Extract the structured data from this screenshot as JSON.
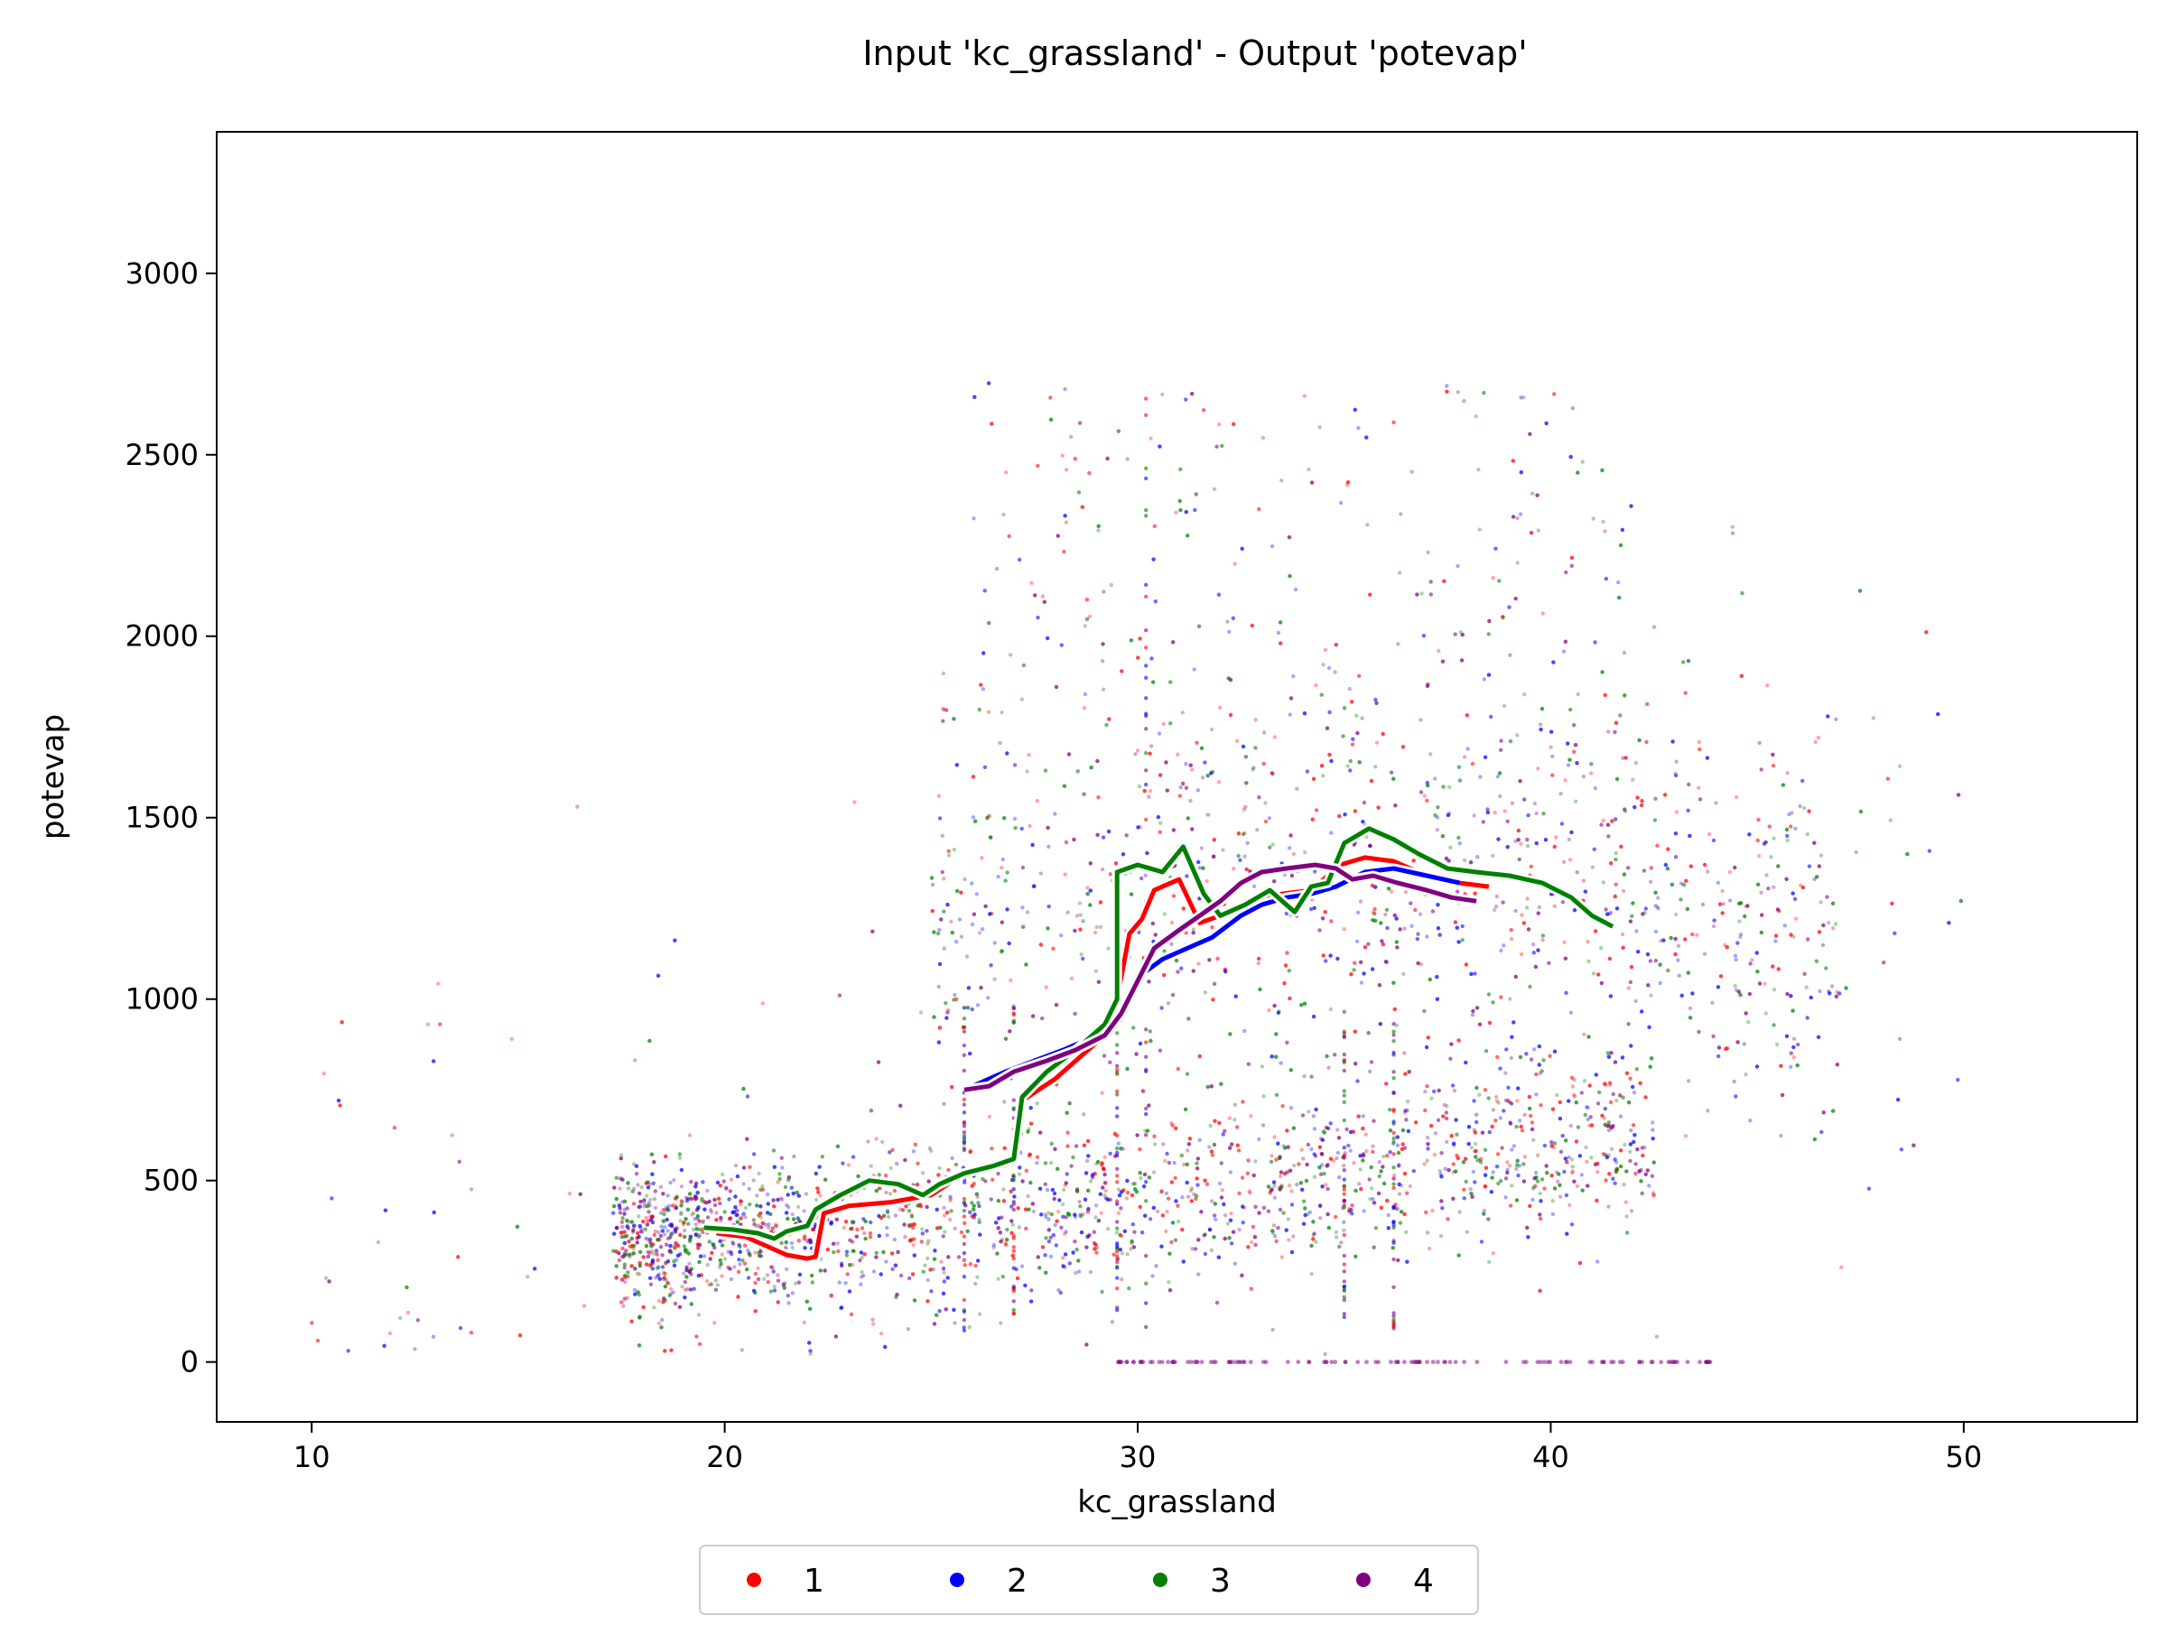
{
  "chart_data": {
    "type": "scatter",
    "title": "Input 'kc_grassland' - Output 'potevap'",
    "xlabel": "kc_grassland",
    "ylabel": "potevap",
    "xlim": [
      7.7,
      54.2
    ],
    "ylim": [
      -165,
      3390
    ],
    "xticks": [
      10,
      20,
      30,
      40,
      50
    ],
    "yticks": [
      0,
      500,
      1000,
      1500,
      2000,
      2500,
      3000
    ],
    "grid": false,
    "legend": {
      "placement": "bottom-center",
      "columns": 4
    },
    "colors": {
      "1": "#ff0000",
      "2": "#0000ff",
      "3": "#008000",
      "4": "#800080"
    },
    "series": [
      {
        "name": "1",
        "color": "#ff0000",
        "line": [
          [
            19.8,
            355
          ],
          [
            20.5,
            345
          ],
          [
            21.0,
            320
          ],
          [
            21.5,
            295
          ],
          [
            22.0,
            285
          ],
          [
            22.2,
            290
          ],
          [
            22.4,
            410
          ],
          [
            23.0,
            430
          ],
          [
            24.0,
            440
          ],
          [
            25.0,
            460
          ],
          [
            25.8,
            520
          ],
          [
            26.5,
            540
          ],
          [
            27.0,
            560
          ],
          [
            27.2,
            720
          ],
          [
            28.0,
            780
          ],
          [
            28.5,
            830
          ],
          [
            29.2,
            900
          ],
          [
            29.5,
            1000
          ],
          [
            29.8,
            1180
          ],
          [
            30.1,
            1220
          ],
          [
            30.4,
            1300
          ],
          [
            31.0,
            1330
          ],
          [
            31.5,
            1210
          ],
          [
            32.0,
            1230
          ],
          [
            32.8,
            1280
          ],
          [
            33.5,
            1290
          ],
          [
            34.2,
            1300
          ],
          [
            34.9,
            1370
          ],
          [
            35.5,
            1390
          ],
          [
            36.2,
            1380
          ],
          [
            37.0,
            1340
          ],
          [
            37.8,
            1320
          ],
          [
            38.5,
            1310
          ]
        ]
      },
      {
        "name": "2",
        "color": "#0000ff",
        "line": [
          [
            26.0,
            760
          ],
          [
            26.8,
            800
          ],
          [
            27.5,
            830
          ],
          [
            28.2,
            860
          ],
          [
            29.0,
            900
          ],
          [
            29.6,
            960
          ],
          [
            30.0,
            1060
          ],
          [
            30.6,
            1110
          ],
          [
            31.2,
            1140
          ],
          [
            31.8,
            1170
          ],
          [
            32.5,
            1230
          ],
          [
            33.0,
            1260
          ],
          [
            33.6,
            1280
          ],
          [
            34.2,
            1290
          ],
          [
            34.8,
            1310
          ],
          [
            35.5,
            1350
          ],
          [
            36.2,
            1360
          ],
          [
            37.0,
            1340
          ],
          [
            37.8,
            1320
          ]
        ]
      },
      {
        "name": "3",
        "color": "#008000",
        "line": [
          [
            19.5,
            370
          ],
          [
            20.2,
            365
          ],
          [
            20.8,
            355
          ],
          [
            21.2,
            340
          ],
          [
            21.5,
            360
          ],
          [
            22.0,
            375
          ],
          [
            22.2,
            420
          ],
          [
            22.8,
            460
          ],
          [
            23.5,
            500
          ],
          [
            24.2,
            490
          ],
          [
            24.8,
            460
          ],
          [
            25.2,
            490
          ],
          [
            25.8,
            520
          ],
          [
            26.5,
            540
          ],
          [
            27.0,
            560
          ],
          [
            27.2,
            730
          ],
          [
            27.8,
            800
          ],
          [
            28.5,
            860
          ],
          [
            29.2,
            930
          ],
          [
            29.5,
            1000
          ],
          [
            29.5,
            1350
          ],
          [
            30.0,
            1370
          ],
          [
            30.6,
            1350
          ],
          [
            31.1,
            1420
          ],
          [
            31.6,
            1290
          ],
          [
            32.0,
            1230
          ],
          [
            32.6,
            1260
          ],
          [
            33.2,
            1300
          ],
          [
            33.8,
            1240
          ],
          [
            34.2,
            1310
          ],
          [
            34.6,
            1320
          ],
          [
            35.0,
            1430
          ],
          [
            35.6,
            1470
          ],
          [
            36.2,
            1440
          ],
          [
            36.8,
            1400
          ],
          [
            37.5,
            1360
          ],
          [
            38.2,
            1350
          ],
          [
            39.0,
            1340
          ],
          [
            39.8,
            1320
          ],
          [
            40.5,
            1280
          ],
          [
            41.0,
            1230
          ],
          [
            41.5,
            1200
          ]
        ]
      },
      {
        "name": "4",
        "color": "#800080",
        "line": [
          [
            25.8,
            750
          ],
          [
            26.4,
            760
          ],
          [
            27.0,
            800
          ],
          [
            27.8,
            830
          ],
          [
            28.5,
            860
          ],
          [
            29.2,
            900
          ],
          [
            29.6,
            960
          ],
          [
            30.0,
            1050
          ],
          [
            30.4,
            1140
          ],
          [
            31.0,
            1190
          ],
          [
            31.5,
            1230
          ],
          [
            32.0,
            1270
          ],
          [
            32.5,
            1320
          ],
          [
            33.0,
            1350
          ],
          [
            33.6,
            1360
          ],
          [
            34.3,
            1370
          ],
          [
            34.8,
            1360
          ],
          [
            35.2,
            1330
          ],
          [
            35.7,
            1340
          ],
          [
            36.3,
            1320
          ],
          [
            37.0,
            1300
          ],
          [
            37.6,
            1280
          ],
          [
            38.2,
            1270
          ]
        ]
      }
    ]
  }
}
